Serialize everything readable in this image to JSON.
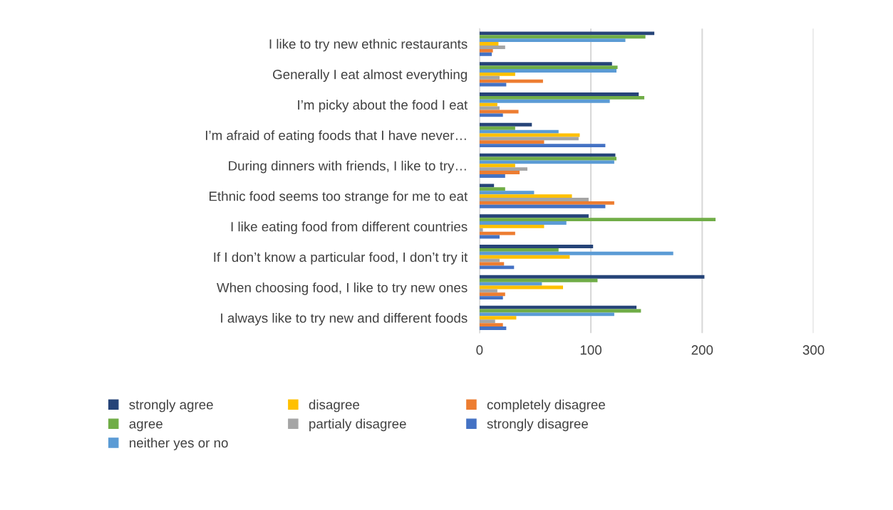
{
  "chart_data": {
    "type": "bar",
    "orientation": "horizontal",
    "categories": [
      "I like to try new ethnic restaurants",
      "Generally I eat almost everything",
      "I’m picky about the food I eat",
      "I’m afraid of eating foods that I have never…",
      "During dinners with friends, I like to try…",
      "Ethnic food seems too strange for me to eat",
      "I like eating food from different countries",
      "If I don’t know a particular food, I don’t try it",
      "When choosing food, I like to try new ones",
      "I always like to try new and different foods"
    ],
    "series": [
      {
        "name": "strongly agree",
        "color": "#264478",
        "values": [
          157,
          119,
          143,
          47,
          122,
          13,
          98,
          102,
          202,
          141
        ]
      },
      {
        "name": "agree",
        "color": "#70ad47",
        "values": [
          149,
          124,
          148,
          32,
          123,
          23,
          212,
          71,
          106,
          145
        ]
      },
      {
        "name": "neither yes or no",
        "color": "#5b9bd5",
        "values": [
          131,
          123,
          117,
          71,
          121,
          49,
          78,
          174,
          56,
          121
        ]
      },
      {
        "name": "disagree",
        "color": "#ffc000",
        "values": [
          17,
          32,
          16,
          90,
          32,
          83,
          58,
          81,
          75,
          33
        ]
      },
      {
        "name": "partialy disagree",
        "color": "#a5a5a5",
        "values": [
          23,
          18,
          18,
          89,
          43,
          98,
          3,
          18,
          16,
          14
        ]
      },
      {
        "name": "completely disagree",
        "color": "#ed7d31",
        "values": [
          12,
          57,
          35,
          58,
          36,
          121,
          32,
          22,
          23,
          21
        ]
      },
      {
        "name": "strongly disagree",
        "color": "#4472c4",
        "values": [
          11,
          24,
          21,
          113,
          23,
          113,
          18,
          31,
          21,
          24
        ]
      }
    ],
    "xlim": [
      0,
      300
    ],
    "xticks": [
      0,
      100,
      200,
      300
    ],
    "grid": "x",
    "legend": "bottom"
  }
}
